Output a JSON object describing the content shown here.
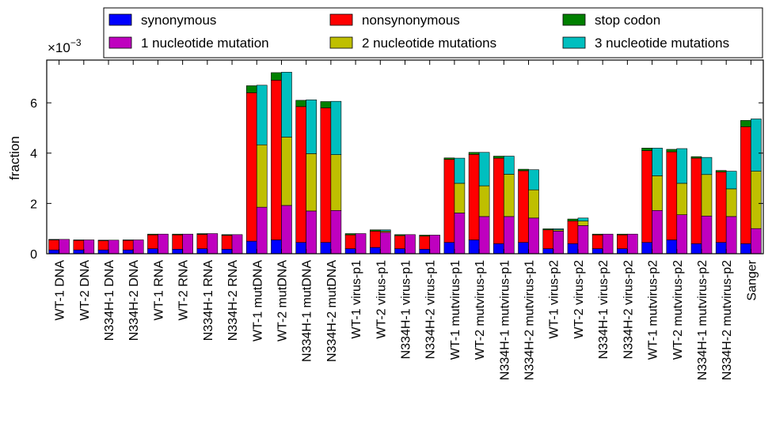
{
  "chart_data": {
    "type": "bar",
    "ylabel": "fraction",
    "y_multiplier_label": "×10",
    "y_multiplier_exponent": "−3",
    "ylim": [
      0,
      7.7
    ],
    "yticks": [
      "0",
      "2",
      "4",
      "6"
    ],
    "ytick_values": [
      0,
      2,
      4,
      6
    ],
    "grid": false,
    "legend_location": "top",
    "categories": [
      "WT-1 DNA",
      "WT-2 DNA",
      "N334H-1 DNA",
      "N334H-2 DNA",
      "WT-1 RNA",
      "WT-2 RNA",
      "N334H-1 RNA",
      "N334H-2 RNA",
      "WT-1 mutDNA",
      "WT-2 mutDNA",
      "N334H-1 mutDNA",
      "N334H-2 mutDNA",
      "WT-1 virus-p1",
      "WT-2 virus-p1",
      "N334H-1 virus-p1",
      "N334H-2 virus-p1",
      "WT-1 mutvirus-p1",
      "WT-2 mutvirus-p1",
      "N334H-1 mutvirus-p1",
      "N334H-2 mutvirus-p1",
      "WT-1 virus-p2",
      "WT-2 virus-p2",
      "N334H-1 virus-p2",
      "N334H-2 virus-p2",
      "WT-1 mutvirus-p2",
      "WT-2 mutvirus-p2",
      "N334H-1 mutvirus-p2",
      "N334H-2 mutvirus-p2",
      "Sanger"
    ],
    "stack_by_type": [
      {
        "name": "synonymous",
        "color": "#0000ff",
        "values": [
          0.15,
          0.15,
          0.15,
          0.15,
          0.2,
          0.18,
          0.2,
          0.18,
          0.5,
          0.55,
          0.45,
          0.45,
          0.2,
          0.25,
          0.2,
          0.18,
          0.45,
          0.55,
          0.4,
          0.45,
          0.2,
          0.4,
          0.2,
          0.2,
          0.45,
          0.55,
          0.4,
          0.45,
          0.4
        ]
      },
      {
        "name": "nonsynonymous",
        "color": "#ff0000",
        "values": [
          0.4,
          0.38,
          0.37,
          0.38,
          0.55,
          0.57,
          0.57,
          0.55,
          5.9,
          6.35,
          5.4,
          5.35,
          0.55,
          0.65,
          0.52,
          0.52,
          3.3,
          3.4,
          3.4,
          2.85,
          0.75,
          0.9,
          0.55,
          0.55,
          3.65,
          3.5,
          3.4,
          2.8,
          4.65
        ]
      },
      {
        "name": "stop codon",
        "color": "#008000",
        "values": [
          0.02,
          0.02,
          0.02,
          0.02,
          0.03,
          0.03,
          0.03,
          0.03,
          0.28,
          0.3,
          0.25,
          0.25,
          0.05,
          0.05,
          0.04,
          0.04,
          0.06,
          0.08,
          0.08,
          0.06,
          0.04,
          0.08,
          0.03,
          0.03,
          0.1,
          0.1,
          0.06,
          0.06,
          0.25
        ]
      }
    ],
    "stack_by_nucleotides": [
      {
        "name": "1 nucleotide mutation",
        "color": "#bf00bf",
        "values": [
          0.57,
          0.55,
          0.54,
          0.55,
          0.78,
          0.78,
          0.8,
          0.76,
          1.85,
          1.92,
          1.7,
          1.72,
          0.8,
          0.85,
          0.76,
          0.74,
          1.62,
          1.48,
          1.48,
          1.42,
          0.9,
          1.12,
          0.78,
          0.78,
          1.72,
          1.55,
          1.5,
          1.48,
          1.0
        ]
      },
      {
        "name": "2 nucleotide mutations",
        "color": "#bfbf00",
        "values": [
          0,
          0,
          0,
          0,
          0,
          0,
          0,
          0,
          2.48,
          2.72,
          2.28,
          2.22,
          0,
          0.05,
          0,
          0,
          1.18,
          1.22,
          1.68,
          1.12,
          0.05,
          0.18,
          0,
          0,
          1.38,
          1.25,
          1.65,
          1.1,
          2.28
        ]
      },
      {
        "name": "3 nucleotide mutations",
        "color": "#00bfbf",
        "values": [
          0,
          0,
          0,
          0,
          0,
          0,
          0,
          0,
          2.37,
          2.58,
          2.14,
          2.12,
          0,
          0.05,
          0,
          0,
          1.0,
          1.33,
          0.72,
          0.8,
          0.04,
          0.12,
          0,
          0,
          1.1,
          1.38,
          0.68,
          0.7,
          2.08
        ]
      }
    ]
  }
}
